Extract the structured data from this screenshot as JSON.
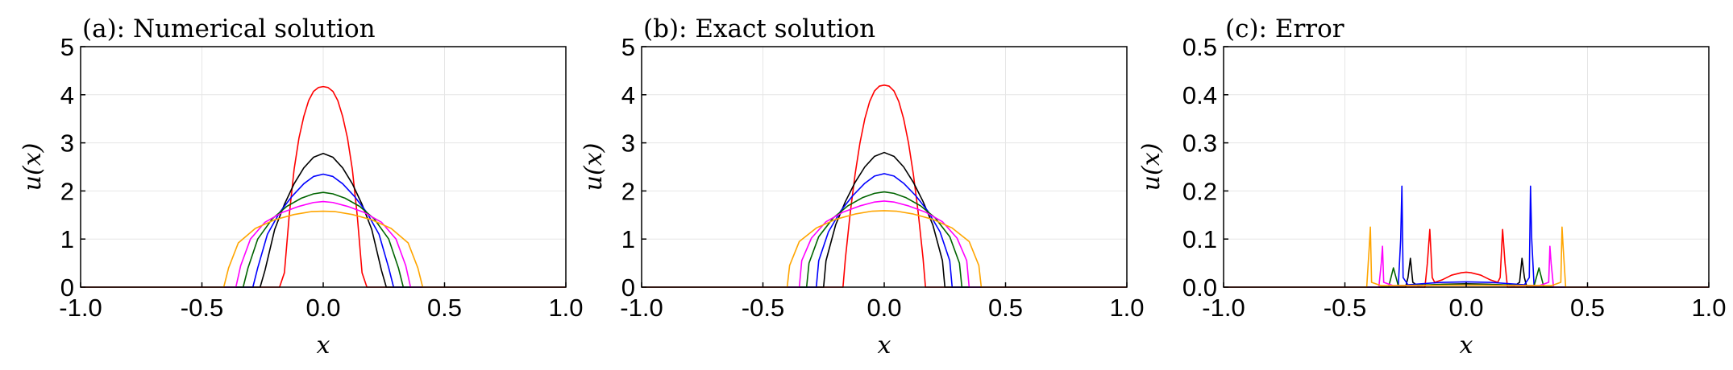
{
  "colors": [
    "#ff0000",
    "#000000",
    "#0000ff",
    "#006400",
    "#ff00ff",
    "#ffa500"
  ],
  "chart_data": [
    {
      "type": "line",
      "title": "(a): Numerical solution",
      "xlabel": "x",
      "ylabel": "u(x)",
      "xlim": [
        -1.0,
        1.0
      ],
      "ylim": [
        0,
        5
      ],
      "xticks": [
        "-1.0",
        "-0.5",
        "0.0",
        "0.5",
        "1.0"
      ],
      "yticks": [
        "0",
        "1",
        "2",
        "3",
        "4",
        "5"
      ],
      "grid": true,
      "legend": "none",
      "series": [
        {
          "color": "#ff0000",
          "x": [
            -1.0,
            -0.18,
            -0.16,
            -0.14,
            -0.12,
            -0.1,
            -0.08,
            -0.06,
            -0.04,
            -0.02,
            0.0,
            0.02,
            0.04,
            0.06,
            0.08,
            0.1,
            0.12,
            0.14,
            0.16,
            0.18,
            1.0
          ],
          "y": [
            0,
            0,
            0.3,
            1.5,
            2.45,
            3.1,
            3.55,
            3.88,
            4.07,
            4.15,
            4.17,
            4.15,
            4.07,
            3.88,
            3.55,
            3.1,
            2.45,
            1.5,
            0.3,
            0,
            0
          ]
        },
        {
          "color": "#000000",
          "x": [
            -1.0,
            -0.26,
            -0.24,
            -0.2,
            -0.16,
            -0.12,
            -0.08,
            -0.04,
            0.0,
            0.04,
            0.08,
            0.12,
            0.16,
            0.2,
            0.24,
            0.26,
            1.0
          ],
          "y": [
            0,
            0,
            0.35,
            1.2,
            1.72,
            2.15,
            2.48,
            2.7,
            2.78,
            2.7,
            2.48,
            2.15,
            1.72,
            1.2,
            0.35,
            0,
            0
          ]
        },
        {
          "color": "#0000ff",
          "x": [
            -1.0,
            -0.29,
            -0.27,
            -0.23,
            -0.18,
            -0.13,
            -0.08,
            -0.04,
            0.0,
            0.04,
            0.08,
            0.13,
            0.18,
            0.23,
            0.27,
            0.29,
            1.0
          ],
          "y": [
            0,
            0,
            0.4,
            1.1,
            1.55,
            1.88,
            2.15,
            2.3,
            2.35,
            2.3,
            2.15,
            1.88,
            1.55,
            1.1,
            0.4,
            0,
            0
          ]
        },
        {
          "color": "#006400",
          "x": [
            -1.0,
            -0.33,
            -0.31,
            -0.27,
            -0.21,
            -0.15,
            -0.09,
            -0.04,
            0.0,
            0.04,
            0.09,
            0.15,
            0.21,
            0.27,
            0.31,
            0.33,
            1.0
          ],
          "y": [
            0,
            0,
            0.4,
            1.0,
            1.42,
            1.68,
            1.85,
            1.94,
            1.97,
            1.94,
            1.85,
            1.68,
            1.42,
            1.0,
            0.4,
            0,
            0
          ]
        },
        {
          "color": "#ff00ff",
          "x": [
            -1.0,
            -0.36,
            -0.34,
            -0.3,
            -0.24,
            -0.17,
            -0.1,
            -0.04,
            0.0,
            0.04,
            0.1,
            0.17,
            0.24,
            0.3,
            0.34,
            0.36,
            1.0
          ],
          "y": [
            0,
            0,
            0.45,
            1.0,
            1.35,
            1.55,
            1.68,
            1.76,
            1.78,
            1.76,
            1.68,
            1.55,
            1.35,
            1.0,
            0.45,
            0,
            0
          ]
        },
        {
          "color": "#ffa500",
          "x": [
            -1.0,
            -0.41,
            -0.39,
            -0.35,
            -0.28,
            -0.2,
            -0.12,
            -0.05,
            0.0,
            0.05,
            0.12,
            0.2,
            0.28,
            0.35,
            0.39,
            0.41,
            1.0
          ],
          "y": [
            0,
            0,
            0.4,
            0.92,
            1.22,
            1.4,
            1.51,
            1.57,
            1.58,
            1.57,
            1.51,
            1.4,
            1.22,
            0.92,
            0.4,
            0,
            0
          ]
        }
      ]
    },
    {
      "type": "line",
      "title": "(b): Exact solution",
      "xlabel": "x",
      "ylabel": "u(x)",
      "xlim": [
        -1.0,
        1.0
      ],
      "ylim": [
        0,
        5
      ],
      "xticks": [
        "-1.0",
        "-0.5",
        "0.0",
        "0.5",
        "1.0"
      ],
      "yticks": [
        "0",
        "1",
        "2",
        "3",
        "4",
        "5"
      ],
      "grid": true,
      "legend": "none",
      "series": [
        {
          "color": "#ff0000",
          "x": [
            -1.0,
            -0.17,
            -0.16,
            -0.14,
            -0.12,
            -0.1,
            -0.08,
            -0.06,
            -0.04,
            -0.02,
            0.0,
            0.02,
            0.04,
            0.06,
            0.08,
            0.1,
            0.12,
            0.14,
            0.16,
            0.17,
            1.0
          ],
          "y": [
            0,
            0,
            0.6,
            1.55,
            2.35,
            3.0,
            3.5,
            3.86,
            4.08,
            4.18,
            4.2,
            4.18,
            4.08,
            3.86,
            3.5,
            3.0,
            2.35,
            1.55,
            0.6,
            0,
            0
          ]
        },
        {
          "color": "#000000",
          "x": [
            -1.0,
            -0.25,
            -0.24,
            -0.2,
            -0.16,
            -0.12,
            -0.08,
            -0.04,
            0.0,
            0.04,
            0.08,
            0.12,
            0.16,
            0.2,
            0.24,
            0.25,
            1.0
          ],
          "y": [
            0,
            0,
            0.55,
            1.3,
            1.78,
            2.18,
            2.5,
            2.72,
            2.8,
            2.72,
            2.5,
            2.18,
            1.78,
            1.3,
            0.55,
            0,
            0
          ]
        },
        {
          "color": "#0000ff",
          "x": [
            -1.0,
            -0.28,
            -0.27,
            -0.23,
            -0.18,
            -0.13,
            -0.08,
            -0.04,
            0.0,
            0.04,
            0.08,
            0.13,
            0.18,
            0.23,
            0.27,
            0.28,
            1.0
          ],
          "y": [
            0,
            0,
            0.55,
            1.15,
            1.58,
            1.9,
            2.16,
            2.31,
            2.36,
            2.31,
            2.16,
            1.9,
            1.58,
            1.15,
            0.55,
            0,
            0
          ]
        },
        {
          "color": "#006400",
          "x": [
            -1.0,
            -0.32,
            -0.31,
            -0.27,
            -0.21,
            -0.15,
            -0.09,
            -0.04,
            0.0,
            0.04,
            0.09,
            0.15,
            0.21,
            0.27,
            0.31,
            0.32,
            1.0
          ],
          "y": [
            0,
            0,
            0.5,
            1.05,
            1.44,
            1.69,
            1.86,
            1.95,
            1.98,
            1.95,
            1.86,
            1.69,
            1.44,
            1.05,
            0.5,
            0,
            0
          ]
        },
        {
          "color": "#ff00ff",
          "x": [
            -1.0,
            -0.35,
            -0.34,
            -0.3,
            -0.24,
            -0.17,
            -0.1,
            -0.04,
            0.0,
            0.04,
            0.1,
            0.17,
            0.24,
            0.3,
            0.34,
            0.35,
            1.0
          ],
          "y": [
            0,
            0,
            0.55,
            1.02,
            1.36,
            1.56,
            1.69,
            1.77,
            1.79,
            1.77,
            1.69,
            1.56,
            1.36,
            1.02,
            0.55,
            0,
            0
          ]
        },
        {
          "color": "#ffa500",
          "x": [
            -1.0,
            -0.4,
            -0.39,
            -0.35,
            -0.28,
            -0.2,
            -0.12,
            -0.05,
            0.0,
            0.05,
            0.12,
            0.2,
            0.28,
            0.35,
            0.39,
            0.4,
            1.0
          ],
          "y": [
            0,
            0,
            0.45,
            0.95,
            1.23,
            1.41,
            1.52,
            1.58,
            1.59,
            1.58,
            1.52,
            1.41,
            1.23,
            0.95,
            0.45,
            0,
            0
          ]
        }
      ]
    },
    {
      "type": "line",
      "title": "(c): Error",
      "xlabel": "x",
      "ylabel": "u(x)",
      "xlim": [
        -1.0,
        1.0
      ],
      "ylim": [
        0,
        0.5
      ],
      "xticks": [
        "-1.0",
        "-0.5",
        "0.0",
        "0.5",
        "1.0"
      ],
      "yticks": [
        "0.0",
        "0.1",
        "0.2",
        "0.3",
        "0.4",
        "0.5"
      ],
      "grid": true,
      "legend": "none",
      "series": [
        {
          "color": "#ff0000",
          "x": [
            -1.0,
            -0.17,
            -0.16,
            -0.15,
            -0.14,
            -0.13,
            -0.1,
            -0.06,
            -0.02,
            0.0,
            0.02,
            0.06,
            0.1,
            0.13,
            0.14,
            0.15,
            0.16,
            0.17,
            1.0
          ],
          "y": [
            0,
            0,
            0.05,
            0.12,
            0.02,
            0.01,
            0.015,
            0.025,
            0.03,
            0.031,
            0.03,
            0.025,
            0.015,
            0.01,
            0.02,
            0.12,
            0.05,
            0,
            0
          ]
        },
        {
          "color": "#000000",
          "x": [
            -1.0,
            -0.25,
            -0.24,
            -0.23,
            -0.22,
            -0.2,
            -0.1,
            0.0,
            0.1,
            0.2,
            0.22,
            0.23,
            0.24,
            0.25,
            1.0
          ],
          "y": [
            0,
            0,
            0.02,
            0.06,
            0.01,
            0.003,
            0.006,
            0.007,
            0.006,
            0.003,
            0.01,
            0.06,
            0.02,
            0,
            0
          ]
        },
        {
          "color": "#0000ff",
          "x": [
            -1.0,
            -0.28,
            -0.27,
            -0.265,
            -0.26,
            -0.24,
            -0.1,
            0.0,
            0.1,
            0.24,
            0.26,
            0.265,
            0.27,
            0.28,
            1.0
          ],
          "y": [
            0,
            0,
            0.1,
            0.21,
            0.02,
            0.005,
            0.01,
            0.011,
            0.01,
            0.005,
            0.02,
            0.21,
            0.1,
            0,
            0
          ]
        },
        {
          "color": "#006400",
          "x": [
            -1.0,
            -0.32,
            -0.31,
            -0.3,
            -0.28,
            -0.15,
            0.0,
            0.15,
            0.28,
            0.3,
            0.31,
            0.32,
            1.0
          ],
          "y": [
            0,
            0,
            0.02,
            0.04,
            0.003,
            0.005,
            0.006,
            0.005,
            0.003,
            0.04,
            0.02,
            0,
            0
          ]
        },
        {
          "color": "#ff00ff",
          "x": [
            -1.0,
            -0.36,
            -0.35,
            -0.345,
            -0.34,
            -0.3,
            0.0,
            0.3,
            0.34,
            0.345,
            0.35,
            0.36,
            1.0
          ],
          "y": [
            0,
            0,
            0.05,
            0.085,
            0.01,
            0.003,
            0.004,
            0.003,
            0.01,
            0.085,
            0.05,
            0,
            0
          ]
        },
        {
          "color": "#ffa500",
          "x": [
            -1.0,
            -0.41,
            -0.4,
            -0.395,
            -0.39,
            -0.35,
            0.0,
            0.35,
            0.39,
            0.395,
            0.4,
            0.41,
            1.0
          ],
          "y": [
            0,
            0,
            0.08,
            0.125,
            0.01,
            0.003,
            0.004,
            0.003,
            0.01,
            0.125,
            0.08,
            0,
            0
          ]
        }
      ]
    }
  ]
}
